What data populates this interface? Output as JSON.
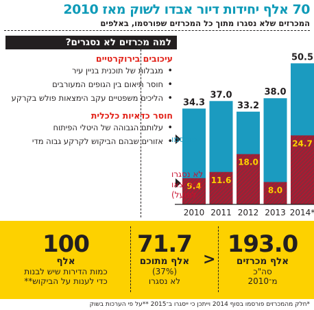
{
  "header": {
    "title": "70 אלף יחידות דיור אבדו לשוק מאז 2010",
    "subtitle": "המכרזים שלא נסגרו מתוך כל המכרזים שפורסמו, באלפים"
  },
  "reasons": {
    "question": "למה מכרזים לא נסגרים?",
    "categories": [
      {
        "title": "עיכובים בירוקרטיים",
        "items": [
          "מגבלות של תוכנית בניין עיר",
          "חוסר תיאום בין הגופים המעורבים",
          "הליכים משפטיים עקב הימצאות פולש בקרקע"
        ]
      },
      {
        "title": "חוסר כדאיות כלכלית",
        "items": [
          "עלותם הגבוהה של היטלי הפיתוח",
          "אזורים שבהם הביקוש לקרקע גבוה מדי"
        ]
      }
    ]
  },
  "chart_data": {
    "type": "bar",
    "categories": [
      "2010",
      "2011",
      "2012",
      "2013",
      "*2014"
    ],
    "series": [
      {
        "name": "פורסמו",
        "values": [
          34.3,
          37.0,
          33.2,
          38.0,
          50.5
        ],
        "color": "#1b9bc0"
      },
      {
        "name": "לא נסגרו (לא יצאו לפועל)",
        "values": [
          9.4,
          11.6,
          18.0,
          8.0,
          24.7
        ],
        "color": "#c8102e"
      }
    ],
    "stacking": "overlay",
    "ylim": [
      0,
      55
    ],
    "legend_placement": "left",
    "grid": false
  },
  "labels": {
    "legend_published": "פורסמו",
    "legend_unclosed_line1": "לא נסגרו",
    "legend_unclosed_line2": "(לא יצאו",
    "legend_unclosed_line3": "לפועל)"
  },
  "stats": {
    "total_tenders": {
      "value": "193.0",
      "label": "אלף מכרזים",
      "text1": "סה\"כ",
      "text2": "מ־2010"
    },
    "average": {
      "value": "71.7",
      "label": "אלף מתוכם",
      "text1": "(37%)",
      "text2": "לא נסגרו"
    },
    "demand": {
      "value": "100",
      "label": "אלף",
      "text1": "כמות הדירות שיש לבנות",
      "text2": "כדי לענות על הביקוש**"
    },
    "comparison_symbol": ">"
  },
  "footnote": "*חלק מהמכרזים פורסמו בסוף 2014 וייתכן כי ייסגרו ב־2015 **על פי הערכות בשוק"
}
